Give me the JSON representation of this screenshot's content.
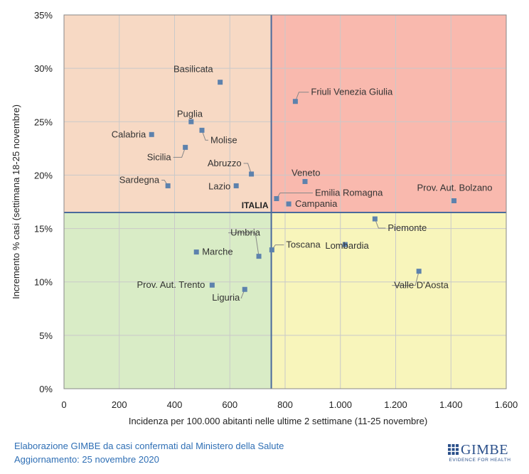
{
  "chart_data": {
    "type": "scatter",
    "xlabel": "Incidenza per 100.000  abitanti nelle ultime 2 settimane (11-25 novembre)",
    "ylabel": "Incremento % casi (settimana 18-25 novembre)",
    "xlim": [
      0,
      1600
    ],
    "ylim": [
      0,
      35
    ],
    "x_ticks": [
      0,
      200,
      400,
      600,
      800,
      1000,
      1200,
      1400,
      1600
    ],
    "x_tick_labels": [
      "0",
      "200",
      "400",
      "600",
      "800",
      "1.000",
      "1.200",
      "1.400",
      "1.600"
    ],
    "y_ticks": [
      0,
      5,
      10,
      15,
      20,
      25,
      30,
      35
    ],
    "y_tick_labels": [
      "0%",
      "5%",
      "10%",
      "15%",
      "20%",
      "25%",
      "30%",
      "35%"
    ],
    "grid": true,
    "reference": {
      "label": "ITALIA",
      "x": 750,
      "y": 16.5
    },
    "quadrant_colors": {
      "top_left": "#f7d9c4",
      "top_right": "#f9b9ae",
      "bottom_left": "#d9ecc6",
      "bottom_right": "#f8f5bb"
    },
    "reference_line_color": "#4a6a9c",
    "marker_color": "#5d82ad",
    "points": [
      {
        "label": "Basilicata",
        "x": 565,
        "y": 28.7
      },
      {
        "label": "Friuli Venezia Giulia",
        "x": 837,
        "y": 26.9
      },
      {
        "label": "Puglia",
        "x": 460,
        "y": 25.0
      },
      {
        "label": "Molise",
        "x": 499,
        "y": 24.2
      },
      {
        "label": "Calabria",
        "x": 317,
        "y": 23.8
      },
      {
        "label": "Sicilia",
        "x": 439,
        "y": 22.6
      },
      {
        "label": "Abruzzo",
        "x": 678,
        "y": 20.1
      },
      {
        "label": "Veneto",
        "x": 872,
        "y": 19.4
      },
      {
        "label": "Sardegna",
        "x": 376,
        "y": 19.0
      },
      {
        "label": "Lazio",
        "x": 623,
        "y": 19.0
      },
      {
        "label": "Emilia Romagna",
        "x": 769,
        "y": 17.8
      },
      {
        "label": "Campania",
        "x": 813,
        "y": 17.3
      },
      {
        "label": "Prov. Aut. Bolzano",
        "x": 1411,
        "y": 17.6
      },
      {
        "label": "Piemonte",
        "x": 1125,
        "y": 15.9
      },
      {
        "label": "Umbria",
        "x": 705,
        "y": 12.4
      },
      {
        "label": "Toscana",
        "x": 752,
        "y": 13.0
      },
      {
        "label": "Lombardia",
        "x": 1017,
        "y": 13.5
      },
      {
        "label": "Marche",
        "x": 479,
        "y": 12.8
      },
      {
        "label": "Valle D'Aosta",
        "x": 1284,
        "y": 11.0
      },
      {
        "label": "Prov. Aut. Trento",
        "x": 536,
        "y": 9.7
      },
      {
        "label": "Liguria",
        "x": 654,
        "y": 9.3
      }
    ]
  },
  "footer": {
    "line1": "Elaborazione GIMBE da casi confermati dal Ministero della Salute",
    "line2": "Aggiornamento: 25 novembre 2020"
  },
  "logo": {
    "word": "GIMBE",
    "tagline": "EVIDENCE FOR HEALTH"
  }
}
